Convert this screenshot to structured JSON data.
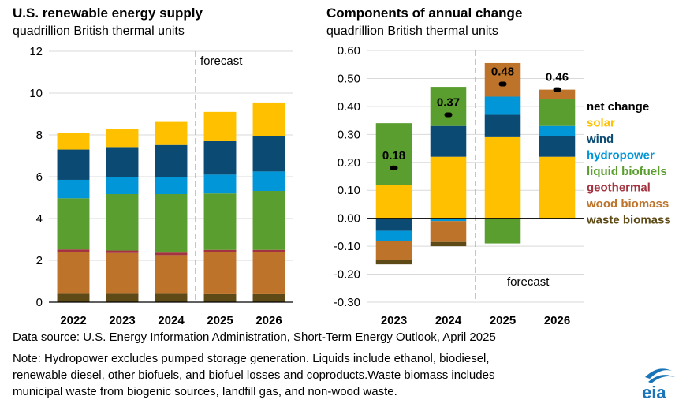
{
  "colors": {
    "solar": "#FFC000",
    "wind": "#0B4B73",
    "hydropower": "#0096D7",
    "liquid_biofuels": "#5A9E2F",
    "geothermal": "#A33340",
    "wood_biomass": "#BD732A",
    "waste_biomass": "#5D4A16",
    "net_change": "#000000",
    "grid": "#d9d9d9",
    "forecast_line": "#a6a6a6",
    "eia_blue": "#1a75b8"
  },
  "footer": {
    "source": "Data source: U.S. Energy Information Administration, Short-Term Energy Outlook, April 2025",
    "note_line1": "Note: Hydropower excludes pumped storage generation. Liquids include ethanol, biodiesel,",
    "note_line2": "renewable diesel, other biofuels, and biofuel losses and coproducts.Waste biomass includes",
    "note_line3": "municipal waste from biogenic sources, landfill gas, and non-wood waste.",
    "logo_text": "eia"
  },
  "chart_data": [
    {
      "type": "bar",
      "stacked": true,
      "title": "U.S. renewable energy supply",
      "subtitle": "quadrillion British thermal units",
      "ylim": [
        0,
        12
      ],
      "yticks": [
        "0",
        "2",
        "4",
        "6",
        "8",
        "10",
        "12"
      ],
      "grid": true,
      "categories": [
        "2022",
        "2023",
        "2024",
        "2025",
        "2026"
      ],
      "forecast_label": "forecast",
      "forecast_starts": "2025",
      "series": [
        {
          "name": "waste biomass",
          "color_key": "waste_biomass",
          "values": [
            0.4,
            0.4,
            0.4,
            0.38,
            0.38
          ]
        },
        {
          "name": "wood biomass",
          "color_key": "wood_biomass",
          "values": [
            2.0,
            1.95,
            1.85,
            2.0,
            2.0
          ]
        },
        {
          "name": "geothermal",
          "color_key": "geothermal",
          "values": [
            0.12,
            0.12,
            0.12,
            0.12,
            0.12
          ]
        },
        {
          "name": "liquid biofuels",
          "color_key": "liquid_biofuels",
          "values": [
            2.45,
            2.7,
            2.8,
            2.7,
            2.82
          ]
        },
        {
          "name": "hydropower",
          "color_key": "hydropower",
          "values": [
            0.88,
            0.8,
            0.8,
            0.9,
            0.93
          ]
        },
        {
          "name": "wind",
          "color_key": "wind",
          "values": [
            1.45,
            1.45,
            1.55,
            1.6,
            1.7
          ]
        },
        {
          "name": "solar",
          "color_key": "solar",
          "values": [
            0.8,
            0.85,
            1.1,
            1.4,
            1.6
          ]
        }
      ]
    },
    {
      "type": "bar",
      "stacked": true,
      "title": "Components of annual change",
      "subtitle": "quadrillion British thermal units",
      "ylim": [
        -0.3,
        0.6
      ],
      "yticks": [
        "-0.30",
        "-0.20",
        "-0.10",
        "0.00",
        "0.10",
        "0.20",
        "0.30",
        "0.40",
        "0.50",
        "0.60"
      ],
      "grid": true,
      "categories": [
        "2023",
        "2024",
        "2025",
        "2026"
      ],
      "forecast_label": "forecast",
      "forecast_starts": "2025",
      "series": [
        {
          "name": "solar",
          "color_key": "solar",
          "values": [
            0.12,
            0.22,
            0.29,
            0.22
          ]
        },
        {
          "name": "wind",
          "color_key": "wind",
          "values": [
            -0.045,
            0.11,
            0.08,
            0.075
          ]
        },
        {
          "name": "hydropower",
          "color_key": "hydropower",
          "values": [
            -0.035,
            -0.01,
            0.065,
            0.035
          ]
        },
        {
          "name": "liquid biofuels",
          "color_key": "liquid_biofuels",
          "values": [
            0.22,
            0.14,
            -0.09,
            0.095
          ]
        },
        {
          "name": "geothermal",
          "color_key": "geothermal",
          "values": [
            0.0,
            0.0,
            0.0,
            0.0
          ]
        },
        {
          "name": "wood biomass",
          "color_key": "wood_biomass",
          "values": [
            -0.07,
            -0.075,
            0.12,
            0.035
          ]
        },
        {
          "name": "waste biomass",
          "color_key": "waste_biomass",
          "values": [
            -0.015,
            -0.015,
            0.0,
            0.0
          ]
        }
      ],
      "net_change": {
        "name": "net change",
        "values": [
          0.18,
          0.37,
          0.48,
          0.46
        ],
        "labels": [
          "0.18",
          "0.37",
          "0.48",
          "0.46"
        ]
      },
      "legend": [
        {
          "label": "net change",
          "color_key": "net_change"
        },
        {
          "label": "solar",
          "color_key": "solar"
        },
        {
          "label": "wind",
          "color_key": "wind"
        },
        {
          "label": "hydropower",
          "color_key": "hydropower"
        },
        {
          "label": "liquid biofuels",
          "color_key": "liquid_biofuels"
        },
        {
          "label": "geothermal",
          "color_key": "geothermal"
        },
        {
          "label": "wood biomass",
          "color_key": "wood_biomass"
        },
        {
          "label": "waste biomass",
          "color_key": "waste_biomass"
        }
      ],
      "legend_position": "right"
    }
  ]
}
